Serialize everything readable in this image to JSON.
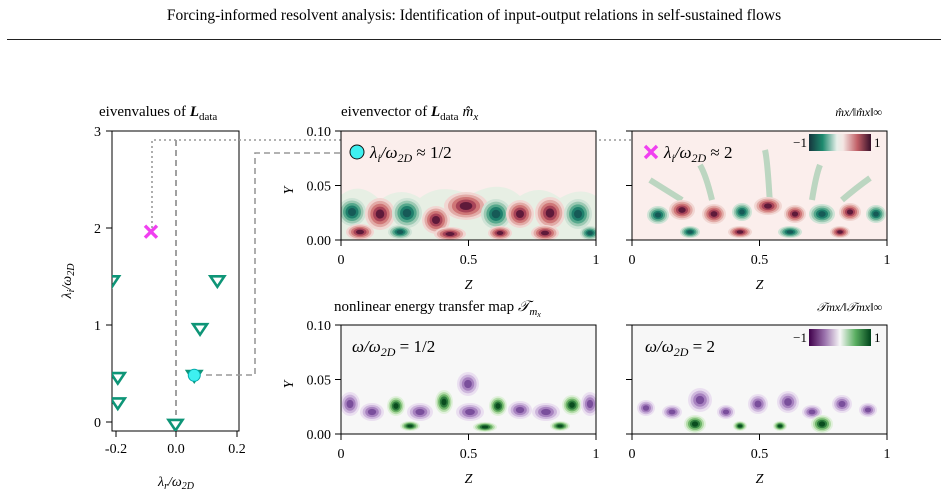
{
  "header": {
    "title": "Forcing-informed resolvent analysis: Identification of input-output relations in self-sustained flows"
  },
  "eigenvalue_panel": {
    "title_text": "eivenvalues of ",
    "title_math": "L",
    "title_sub": "data",
    "xlabel_main": "λ",
    "xlabel_sub1": "r",
    "xlabel_sep": "/ω",
    "xlabel_sub2": "2D",
    "ylabel_main": "λ",
    "ylabel_sub1": "i",
    "ylabel_sep": "/ω",
    "ylabel_sub2": "2D",
    "xticks": [
      "-0.2",
      "0.0",
      "0.2"
    ],
    "yticks": [
      "0",
      "1",
      "2",
      "3"
    ]
  },
  "eigenvector_row": {
    "title_text": "eivenvector of ",
    "title_math": "L",
    "title_sub": "data",
    "title_vec": "m̂",
    "title_vec_sub": "x",
    "cbar_label": "m̂x/‖m̂x‖∞",
    "cbar_min": "−1",
    "cbar_max": "1",
    "ann_left_pre": "λ",
    "ann_left_sub": "i",
    "ann_left_mid": "/ω",
    "ann_left_sub2": "2D",
    "ann_left_val": " ≈ 1/2",
    "ann_right_val": " ≈ 2"
  },
  "transfer_row": {
    "title_text": "nonlinear energy transfer map ",
    "title_math": "𝒯",
    "title_sub": "m",
    "title_sub2": "x",
    "cbar_label": "𝒯mx/‖𝒯mx‖∞",
    "cbar_min": "−1",
    "cbar_max": "1",
    "ann_left_pre": "ω",
    "ann_left_mid": "/ω",
    "ann_left_sub": "2D",
    "ann_left_val": " = 1/2",
    "ann_right_val": " = 2"
  },
  "field_axes": {
    "xlabel": "Z",
    "ylabel": "Y",
    "xticks": [
      "0",
      "0.5",
      "1"
    ],
    "yticks": [
      "0.00",
      "0.05",
      "0.10"
    ]
  },
  "chart_data": [
    {
      "type": "scatter",
      "title": "eivenvalues of Ldata",
      "xlabel": "λr/ω2D",
      "ylabel": "λi/ω2D",
      "xlim": [
        -0.22,
        0.22
      ],
      "ylim": [
        -0.07,
        3.0
      ],
      "grid": false,
      "series": [
        {
          "x": [
            0.0,
            0.065,
            0.085,
            0.145,
            -0.2,
            -0.22,
            -0.2
          ],
          "y": [
            0.0,
            0.5,
            0.98,
            1.47,
            0.48,
            1.47,
            0.22
          ],
          "marker": "triangle-down",
          "color": "#0e9577"
        }
      ],
      "highlighted": [
        {
          "x": 0.065,
          "y": 0.5,
          "color": "#3ef0f0",
          "marker": "circle"
        },
        {
          "x": -0.085,
          "y": 1.97,
          "color": "#f040f0",
          "marker": "x"
        }
      ]
    }
  ],
  "colors": {
    "teal": "#0e9577",
    "cyan": "#3ef0f0",
    "magenta": "#f040f0",
    "arrow": "#909090"
  }
}
